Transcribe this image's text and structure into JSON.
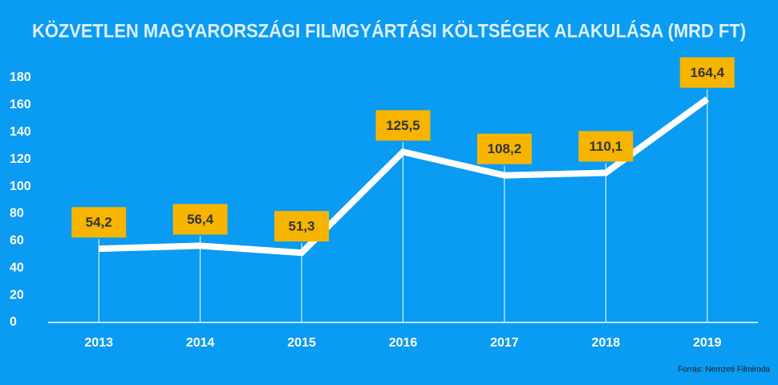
{
  "chart_data": {
    "type": "line",
    "title": "KÖZVETLEN MAGYARORSZÁGI FILMGYÁRTÁSI KÖLTSÉGEK ALAKULÁSA (MRD FT)",
    "categories": [
      "2013",
      "2014",
      "2015",
      "2016",
      "2017",
      "2018",
      "2019"
    ],
    "values": [
      54.2,
      56.4,
      51.3,
      125.5,
      108.2,
      110.1,
      164.4
    ],
    "value_labels": [
      "54,2",
      "56,4",
      "51,3",
      "125,5",
      "108,2",
      "110,1",
      "164,4"
    ],
    "color": "#ffffff",
    "label_color": "#f7b500",
    "ylim": [
      0,
      180
    ],
    "yticks": [
      0,
      20,
      40,
      60,
      80,
      100,
      120,
      140,
      160,
      180
    ],
    "source": "Forrás: Nemzeti Filmiroda"
  }
}
